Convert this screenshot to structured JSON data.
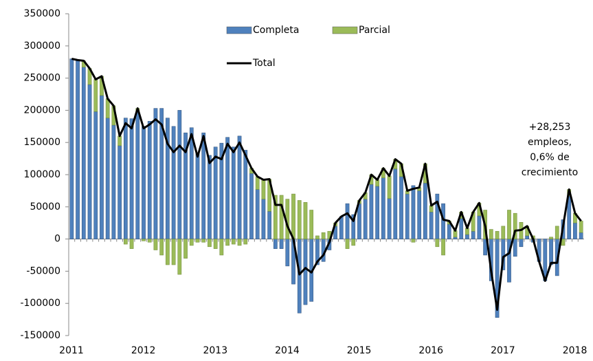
{
  "chart_data": {
    "type": "stacked-bar-line",
    "categories": [
      "2011",
      null,
      null,
      null,
      null,
      null,
      null,
      null,
      null,
      null,
      null,
      null,
      "2012",
      null,
      null,
      null,
      null,
      null,
      null,
      null,
      null,
      null,
      null,
      null,
      "2013",
      null,
      null,
      null,
      null,
      null,
      null,
      null,
      null,
      null,
      null,
      null,
      "2014",
      null,
      null,
      null,
      null,
      null,
      null,
      null,
      null,
      null,
      null,
      null,
      "2015",
      null,
      null,
      null,
      null,
      null,
      null,
      null,
      null,
      null,
      null,
      null,
      "2016",
      null,
      null,
      null,
      null,
      null,
      null,
      null,
      null,
      null,
      null,
      null,
      "2017",
      null,
      null,
      null,
      null,
      null,
      null,
      null,
      null,
      null,
      null,
      null,
      "2018",
      null
    ],
    "series": [
      {
        "name": "Completa",
        "kind": "bar",
        "color": "#4f81bd",
        "values": [
          280000,
          278000,
          267000,
          240000,
          198000,
          223000,
          188000,
          177000,
          145000,
          188000,
          187000,
          198000,
          175000,
          183000,
          203000,
          203000,
          188000,
          175000,
          200000,
          165000,
          173000,
          133000,
          165000,
          130000,
          143000,
          149000,
          158000,
          143000,
          160000,
          138000,
          102000,
          77000,
          62000,
          43000,
          -15000,
          -15000,
          -42000,
          -70000,
          -115000,
          -102000,
          -97000,
          -40000,
          -35000,
          -17000,
          20000,
          35000,
          55000,
          38000,
          55000,
          62000,
          85000,
          82000,
          95000,
          63000,
          109000,
          97000,
          70000,
          83000,
          75000,
          87000,
          42000,
          70000,
          55000,
          23000,
          3000,
          32000,
          7000,
          12000,
          36000,
          -25000,
          -65000,
          -122000,
          -48000,
          -67000,
          -27000,
          -12000,
          5000,
          -5000,
          -35000,
          -65000,
          -40000,
          -57000,
          30000,
          67000,
          25000,
          10000
        ]
      },
      {
        "name": "Parcial",
        "kind": "bar",
        "color": "#9bbb59",
        "values": [
          0,
          0,
          10000,
          25000,
          50000,
          30000,
          30000,
          30000,
          15000,
          -8000,
          -15000,
          5000,
          -3000,
          -5000,
          -17000,
          -25000,
          -40000,
          -40000,
          -55000,
          -30000,
          -10000,
          -5000,
          -5000,
          -12000,
          -15000,
          -25000,
          -10000,
          -8000,
          -10000,
          -8000,
          8000,
          20000,
          30000,
          50000,
          68000,
          68000,
          62000,
          70000,
          60000,
          57000,
          45000,
          5000,
          10000,
          12000,
          5000,
          0,
          -15000,
          -10000,
          5000,
          10000,
          15000,
          10000,
          15000,
          35000,
          15000,
          20000,
          5000,
          -5000,
          5000,
          30000,
          10000,
          -12000,
          -25000,
          5000,
          10000,
          10000,
          10000,
          30000,
          20000,
          45000,
          15000,
          12000,
          20000,
          45000,
          40000,
          26000,
          15000,
          5000,
          0,
          0,
          3000,
          20000,
          -10000,
          10000,
          15000,
          18000
        ]
      },
      {
        "name": "Total",
        "kind": "line",
        "color": "#000000",
        "values": [
          280000,
          278000,
          277000,
          265000,
          248000,
          253000,
          218000,
          207000,
          160000,
          180000,
          172000,
          203000,
          172000,
          178000,
          186000,
          178000,
          148000,
          135000,
          145000,
          135000,
          163000,
          128000,
          160000,
          118000,
          128000,
          124000,
          148000,
          135000,
          150000,
          130000,
          110000,
          97000,
          92000,
          93000,
          53000,
          53000,
          20000,
          0,
          -55000,
          -45000,
          -52000,
          -35000,
          -25000,
          -5000,
          25000,
          35000,
          40000,
          28000,
          60000,
          72000,
          100000,
          92000,
          110000,
          98000,
          124000,
          117000,
          75000,
          78000,
          80000,
          117000,
          52000,
          58000,
          30000,
          28000,
          13000,
          42000,
          17000,
          42000,
          56000,
          20000,
          -50000,
          -110000,
          -28000,
          -22000,
          13000,
          14000,
          20000,
          0,
          -35000,
          -65000,
          -37000,
          -37000,
          20000,
          77000,
          40000,
          28000
        ]
      }
    ],
    "ylim": [
      -150000,
      350000
    ],
    "yticks": [
      -150000,
      -100000,
      -50000,
      0,
      50000,
      100000,
      150000,
      200000,
      250000,
      300000,
      350000
    ],
    "annotation": [
      "+28,253",
      "empleos,",
      "0,6% de",
      "crecimiento"
    ]
  }
}
